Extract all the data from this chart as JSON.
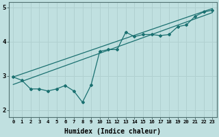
{
  "xlabel": "Humidex (Indice chaleur)",
  "background_color": "#c0e0e0",
  "grid_color": "#b0d0d0",
  "line_color": "#1a7070",
  "xlim": [
    -0.5,
    23.5
  ],
  "ylim": [
    1.8,
    5.15
  ],
  "yticks": [
    2,
    3,
    4,
    5
  ],
  "xticks": [
    0,
    1,
    2,
    3,
    4,
    5,
    6,
    7,
    8,
    9,
    10,
    11,
    12,
    13,
    14,
    15,
    16,
    17,
    18,
    19,
    20,
    21,
    22,
    23
  ],
  "x": [
    0,
    1,
    2,
    3,
    4,
    5,
    6,
    7,
    8,
    9,
    10,
    11,
    12,
    13,
    14,
    15,
    16,
    17,
    18,
    19,
    20,
    21,
    22,
    23
  ],
  "y_data": [
    2.97,
    2.87,
    2.62,
    2.62,
    2.56,
    2.62,
    2.72,
    2.56,
    2.23,
    2.74,
    3.72,
    3.77,
    3.77,
    4.28,
    4.15,
    4.21,
    4.21,
    4.18,
    4.21,
    4.44,
    4.49,
    4.74,
    4.87,
    4.92
  ],
  "reg_upper_start": 2.97,
  "reg_upper_end": 4.97,
  "reg_lower_start": 2.75,
  "reg_lower_end": 4.85,
  "figsize": [
    3.2,
    2.0
  ],
  "dpi": 100
}
